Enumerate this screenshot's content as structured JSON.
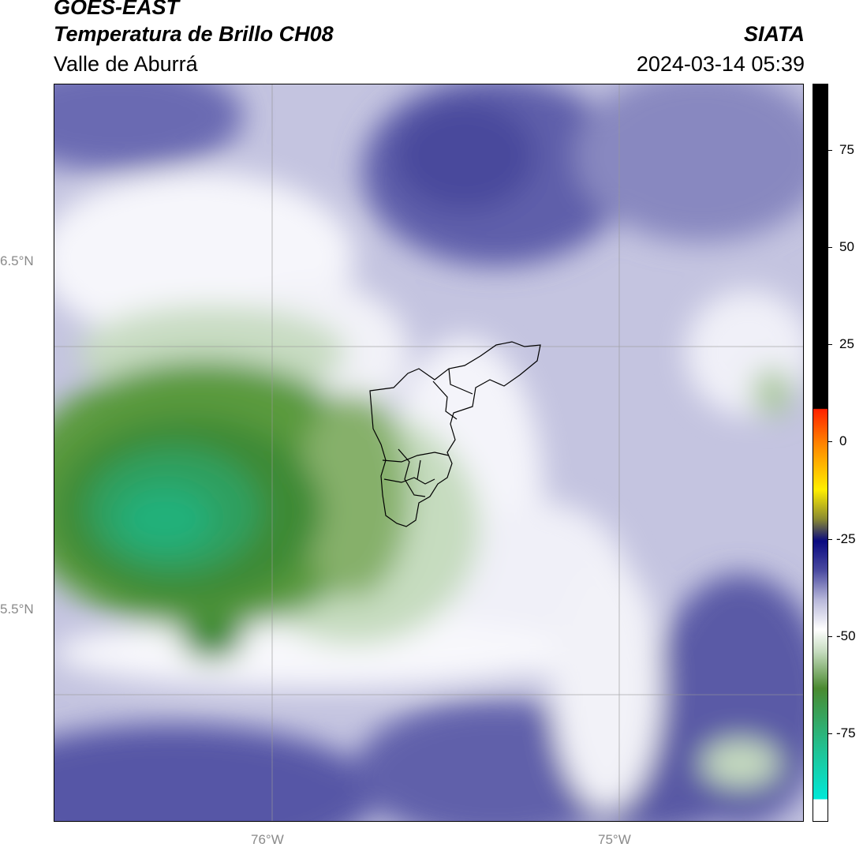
{
  "header": {
    "title_line1": "GOES-EAST",
    "title_line2": "Temperatura de Brillo CH08",
    "title_line3": "Valle de Aburrá",
    "organization": "SIATA",
    "datetime": "2024-03-14 05:39"
  },
  "map": {
    "lat_labels": [
      "6.5°N",
      "5.5°N"
    ],
    "lon_labels": [
      "76°W",
      "75°W"
    ]
  },
  "colorbar": {
    "labels": [
      "75",
      "50",
      "25",
      "0",
      "-25",
      "-50",
      "-75"
    ],
    "colors": {
      "black": "#000000",
      "red": "#ff2200",
      "orange": "#ff8800",
      "yellow": "#ffee00",
      "olive": "#8a8a30",
      "navy": "#0a0a80",
      "violet": "#4a4aa0",
      "lavender": "#b8b8da",
      "white": "#ffffff",
      "lightgreen": "#c6dcbf",
      "green": "#4a8a30",
      "teal": "#22c090",
      "cyan": "#00e8d8"
    }
  }
}
